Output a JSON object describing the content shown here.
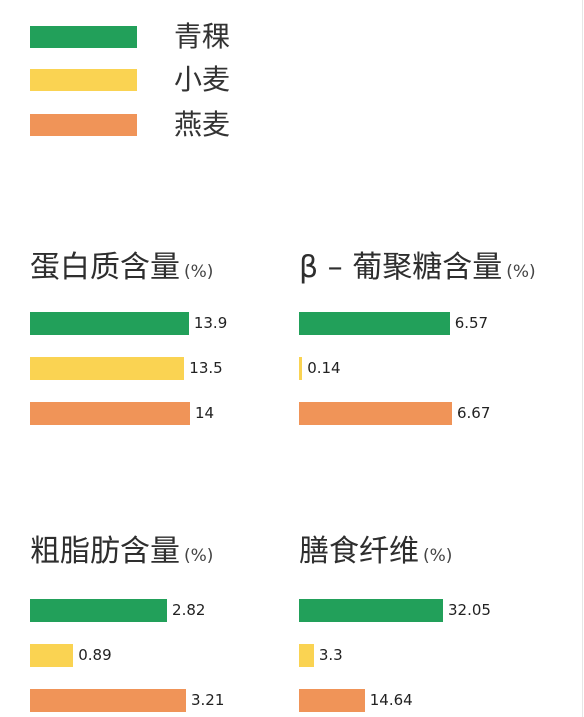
{
  "legend": [
    {
      "label": "青稞",
      "color": "#22a05a"
    },
    {
      "label": "小麦",
      "color": "#fad352"
    },
    {
      "label": "燕麦",
      "color": "#f09458"
    }
  ],
  "chart_data": [
    {
      "type": "bar",
      "orientation": "horizontal",
      "title": "蛋白质含量",
      "unit": "(%)",
      "categories": [
        "青稞",
        "小麦",
        "燕麦"
      ],
      "values": [
        13.9,
        13.5,
        14
      ],
      "labels": [
        "13.9",
        "13.5",
        "14"
      ],
      "xlim": [
        0,
        14
      ],
      "grid": false
    },
    {
      "type": "bar",
      "orientation": "horizontal",
      "title": "β – 葡聚糖含量",
      "unit": "(%)",
      "categories": [
        "青稞",
        "小麦",
        "燕麦"
      ],
      "values": [
        6.57,
        0.14,
        6.67
      ],
      "labels": [
        "6.57",
        "0.14",
        "6.67"
      ],
      "xlim": [
        0,
        6.67
      ],
      "grid": false
    },
    {
      "type": "bar",
      "orientation": "horizontal",
      "title": "粗脂肪含量",
      "unit": "(%)",
      "categories": [
        "青稞",
        "小麦",
        "燕麦"
      ],
      "values": [
        2.82,
        0.89,
        3.21
      ],
      "labels": [
        "2.82",
        "0.89",
        "3.21"
      ],
      "xlim": [
        0,
        3.21
      ],
      "grid": false
    },
    {
      "type": "bar",
      "orientation": "horizontal",
      "title": "膳食纤维",
      "unit": "(%)",
      "categories": [
        "青稞",
        "小麦",
        "燕麦"
      ],
      "values": [
        32.05,
        3.3,
        14.64
      ],
      "labels": [
        "32.05",
        "3.3",
        "14.64"
      ],
      "xlim": [
        0,
        32.05
      ],
      "grid": false
    }
  ]
}
